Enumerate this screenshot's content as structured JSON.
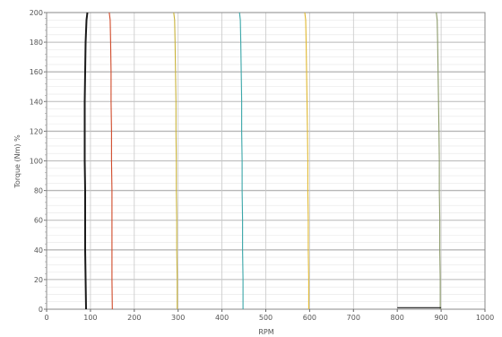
{
  "chart_data": {
    "type": "line",
    "title": "",
    "xlabel": "RPM",
    "ylabel": "Torque (Nm) %",
    "xlim": [
      0,
      1000
    ],
    "ylim": [
      0,
      200
    ],
    "xticks": [
      0,
      100,
      200,
      300,
      400,
      500,
      600,
      700,
      800,
      900,
      1000
    ],
    "yticks": [
      0,
      20,
      40,
      60,
      80,
      100,
      120,
      140,
      160,
      180,
      200
    ],
    "grid": true,
    "legend": "none",
    "series": [
      {
        "color": "#1a1a1a",
        "x": [
          90,
          89,
          88,
          88,
          88,
          87,
          87,
          87,
          88,
          89,
          91,
          93
        ],
        "y": [
          0,
          20,
          40,
          60,
          80,
          100,
          120,
          140,
          160,
          180,
          195,
          200
        ]
      },
      {
        "color": "#d04a2a",
        "x": [
          150,
          149,
          149,
          149,
          149,
          148,
          148,
          147,
          147,
          146,
          145,
          143
        ],
        "y": [
          0,
          20,
          40,
          60,
          80,
          100,
          120,
          140,
          160,
          180,
          195,
          200
        ]
      },
      {
        "color": "#c8b23a",
        "x": [
          298,
          298,
          297,
          297,
          296,
          296,
          295,
          295,
          294,
          293,
          292,
          290
        ],
        "y": [
          0,
          20,
          40,
          60,
          80,
          100,
          120,
          140,
          160,
          180,
          195,
          200
        ]
      },
      {
        "color": "#3aa6a8",
        "x": [
          448,
          448,
          447,
          447,
          446,
          446,
          445,
          445,
          444,
          443,
          442,
          440
        ],
        "y": [
          0,
          20,
          40,
          60,
          80,
          100,
          120,
          140,
          160,
          180,
          195,
          200
        ]
      },
      {
        "color": "#e0b830",
        "x": [
          598,
          598,
          597,
          597,
          596,
          596,
          595,
          594,
          593,
          592,
          591,
          589
        ],
        "y": [
          0,
          20,
          40,
          60,
          80,
          100,
          120,
          140,
          160,
          180,
          195,
          200
        ]
      },
      {
        "color": "#8c9a6a",
        "x": [
          898,
          898,
          897,
          897,
          896,
          896,
          895,
          894,
          893,
          892,
          891,
          889
        ],
        "y": [
          0,
          20,
          40,
          60,
          80,
          100,
          120,
          140,
          160,
          180,
          195,
          200
        ]
      },
      {
        "color": "#1a1a1a",
        "x": [
          800,
          850,
          900
        ],
        "y": [
          1,
          1,
          1
        ]
      }
    ]
  }
}
